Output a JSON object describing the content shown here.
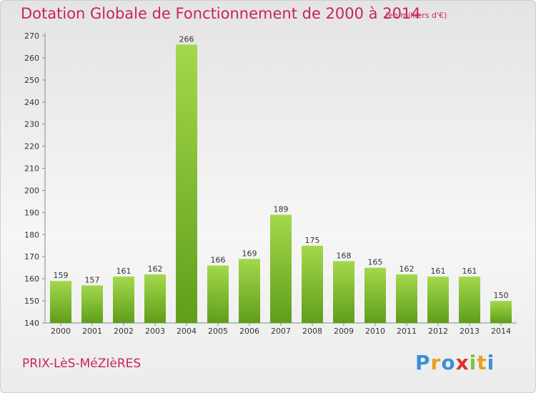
{
  "title": "Dotation Globale de Fonctionnement de 2000 à 2014",
  "subtitle": "(en milliers d'€)",
  "commune": "PRIX-LèS-MéZIèRES",
  "logo": {
    "letters": [
      "P",
      "r",
      "o",
      "x",
      "i",
      "t",
      "i"
    ],
    "colors": [
      "#3a8fd8",
      "#e8a020",
      "#3a8fd8",
      "#e0302a",
      "#7fc241",
      "#e8a020",
      "#3a8fd8"
    ]
  },
  "colors": {
    "title": "#c8235e",
    "bar_light": "#a4d84c",
    "bar_dark": "#5f9e1a"
  },
  "chart_data": {
    "type": "bar",
    "title": "Dotation Globale de Fonctionnement de 2000 à 2014",
    "xlabel": "",
    "ylabel": "",
    "categories": [
      "2000",
      "2001",
      "2002",
      "2003",
      "2004",
      "2005",
      "2006",
      "2007",
      "2008",
      "2009",
      "2010",
      "2011",
      "2012",
      "2013",
      "2014"
    ],
    "values": [
      159,
      157,
      161,
      162,
      266,
      166,
      169,
      189,
      175,
      168,
      165,
      162,
      161,
      161,
      150
    ],
    "ylim": [
      140,
      270
    ],
    "yticks": [
      140,
      150,
      160,
      170,
      180,
      190,
      200,
      210,
      220,
      230,
      240,
      250,
      260,
      270
    ],
    "grid": false,
    "legend": "none"
  }
}
